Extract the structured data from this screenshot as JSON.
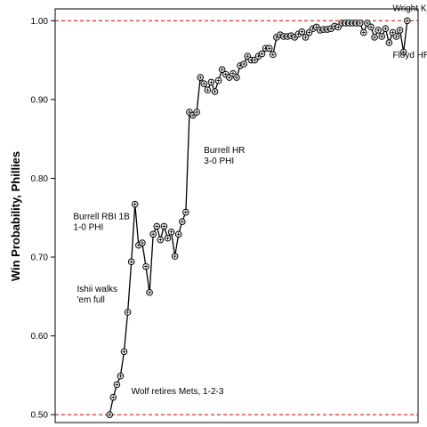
{
  "chart_data": {
    "type": "line",
    "title": "",
    "xlabel": "",
    "ylabel": "Win Probability, Phillies",
    "ylim": [
      0.49,
      1.015
    ],
    "xlim": [
      0,
      100
    ],
    "yticks": [
      "0.50",
      "0.60",
      "0.70",
      "0.80",
      "0.90",
      "1.00"
    ],
    "reference_lines": [
      0.5,
      1.0
    ],
    "grid": false,
    "legend": "none",
    "colors": {
      "line": "#000000",
      "reference": "#cc0000"
    },
    "series": [
      {
        "x": [
          15,
          16,
          17,
          18,
          19,
          20,
          21,
          22,
          23,
          24,
          25,
          26,
          27,
          28,
          29,
          30,
          31,
          32,
          33,
          34,
          35,
          36,
          37,
          38,
          39,
          40,
          41,
          42,
          43,
          44,
          45,
          46,
          47,
          48,
          49,
          50,
          51,
          52,
          53,
          54,
          55,
          56,
          57,
          58,
          59,
          60,
          61,
          62,
          63,
          64,
          65,
          66,
          67,
          68,
          69,
          70,
          71,
          72,
          73,
          74,
          75,
          76,
          77,
          78,
          79,
          80,
          81,
          82,
          83,
          84,
          85,
          86,
          87,
          88,
          89,
          90,
          91,
          92,
          93,
          94,
          95,
          96,
          97
        ],
        "values": [
          0.5,
          0.522,
          0.538,
          0.549,
          0.58,
          0.63,
          0.694,
          0.767,
          0.715,
          0.718,
          0.688,
          0.655,
          0.729,
          0.739,
          0.722,
          0.739,
          0.724,
          0.732,
          0.701,
          0.729,
          0.745,
          0.757,
          0.884,
          0.88,
          0.884,
          0.928,
          0.92,
          0.912,
          0.922,
          0.91,
          0.924,
          0.938,
          0.932,
          0.928,
          0.933,
          0.928,
          0.943,
          0.945,
          0.955,
          0.95,
          0.95,
          0.955,
          0.958,
          0.965,
          0.965,
          0.957,
          0.979,
          0.982,
          0.98,
          0.98,
          0.981,
          0.979,
          0.983,
          0.986,
          0.979,
          0.985,
          0.99,
          0.992,
          0.988,
          0.989,
          0.989,
          0.99,
          0.993,
          0.992,
          0.997,
          0.997,
          0.997,
          0.997,
          0.997,
          0.997,
          0.985,
          0.997,
          0.992,
          0.979,
          0.988,
          0.98,
          0.99,
          0.972,
          0.985,
          0.98,
          0.988,
          0.96,
          1.0
        ]
      }
    ],
    "annotations": [
      {
        "lines": [
          "Wright K"
        ],
        "x": 93,
        "y": 1.012
      },
      {
        "lines": [
          "Floyd HR"
        ],
        "x": 93,
        "y": 0.953
      },
      {
        "lines": [
          "Burrell HR",
          "3-0 PHI"
        ],
        "x": 41,
        "y": 0.832
      },
      {
        "lines": [
          "Burrell RBI 1B",
          "1-0 PHI"
        ],
        "x": 5,
        "y": 0.748
      },
      {
        "lines": [
          "Ishii walks",
          "'em full"
        ],
        "x": 6,
        "y": 0.656
      },
      {
        "lines": [
          "Wolf retires Mets, 1-2-3"
        ],
        "x": 21,
        "y": 0.526
      }
    ]
  }
}
